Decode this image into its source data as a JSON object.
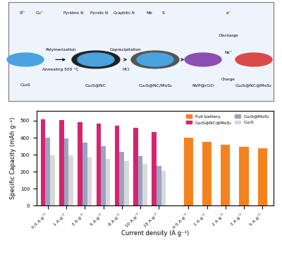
{
  "diagram": {
    "materials": [
      "Cu₂S",
      "Cu₂S@NC",
      "Cu₂S@NC/MoS₂",
      "NVP@rGO",
      "Cu₂S@NC@MoS₂"
    ],
    "steps": [
      [
        "Polymerization",
        "Annealing 500 °C"
      ],
      [
        "Coprecipitation",
        "HCl"
      ]
    ],
    "ions": [
      "S²⁻",
      "Cu⁺"
    ],
    "nitrogen": [
      "Pyridinic N",
      "Pyrrolic N",
      "Graphitic N"
    ],
    "mos2_atoms": [
      "Mo",
      "S"
    ],
    "battery": {
      "discharge": "Discharge",
      "charge": "Charge",
      "electron": "e⁻",
      "ion": "Na⁺"
    }
  },
  "chart_data": {
    "type": "bar",
    "x_label": "Current density (A g⁻¹)",
    "y_label": "Specific Capacity (mAh g⁻¹)",
    "categories": [
      "0.5 A g⁻¹",
      "1 A g⁻¹",
      "3 A g⁻¹",
      "5 A g⁻¹",
      "8 A g⁻¹",
      "10 A g⁻¹",
      "15 A g⁻¹",
      "0.5 A g⁻¹",
      "1 A g⁻¹",
      "2 A g⁻¹",
      "3 A g⁻¹",
      "5 A g⁻¹"
    ],
    "series": [
      {
        "name": "Full battery",
        "color": "#f58220",
        "values": [
          null,
          null,
          null,
          null,
          null,
          null,
          null,
          398,
          373,
          358,
          345,
          338
        ]
      },
      {
        "name": "Cu₂S@NC@MoS₂",
        "color": "#d6246e",
        "values": [
          510,
          505,
          492,
          482,
          470,
          460,
          432,
          null,
          null,
          null,
          null,
          null
        ]
      },
      {
        "name": "Cu₂S@MoS₂",
        "color": "#9aa3c0",
        "values": [
          400,
          395,
          372,
          352,
          318,
          290,
          232,
          null,
          null,
          null,
          null,
          null
        ]
      },
      {
        "name": "Cu₂S",
        "color": "#d9d9d9",
        "values": [
          297,
          295,
          285,
          275,
          262,
          245,
          203,
          null,
          null,
          null,
          null,
          null
        ]
      }
    ],
    "ylim": [
      0,
      560
    ],
    "yticks": [
      0,
      100,
      200,
      300,
      400,
      500
    ],
    "legend": "upper right",
    "grid": false
  }
}
